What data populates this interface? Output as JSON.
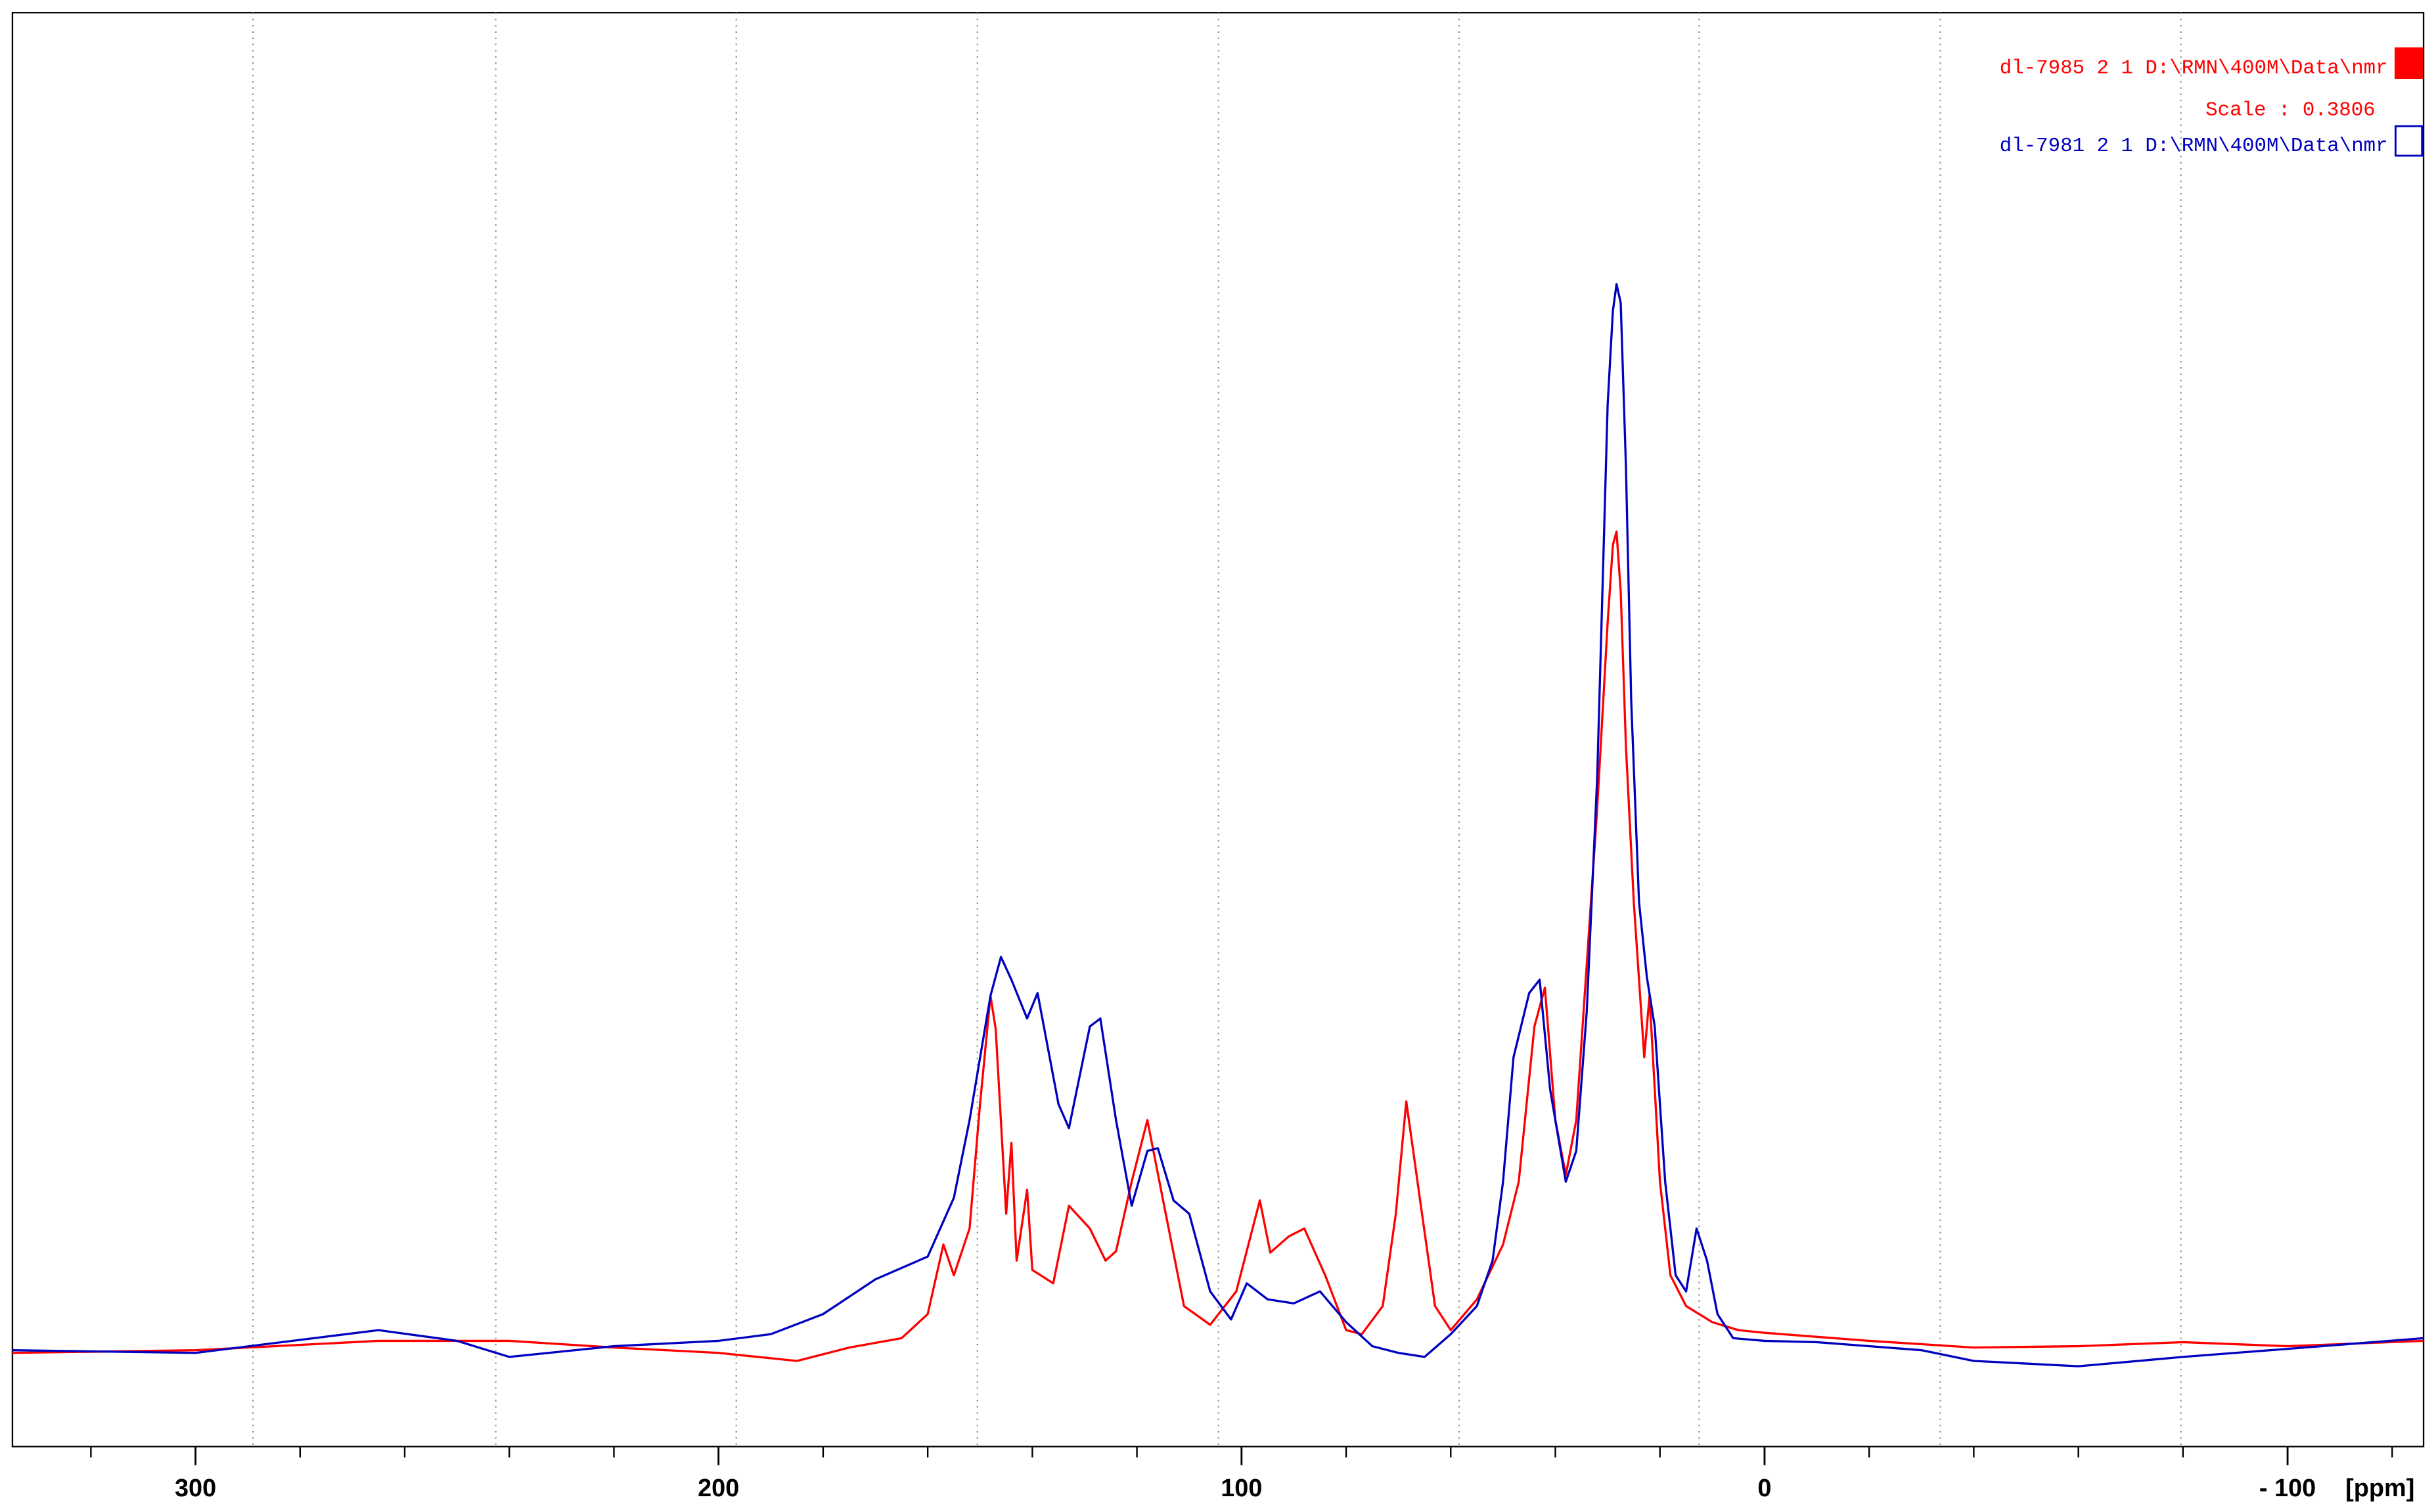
{
  "chart_data": {
    "type": "line",
    "x_reversed": true,
    "xlim": [
      335,
      -126
    ],
    "ylim": [
      -7.2,
      100
    ],
    "xticks": [
      300,
      200,
      100,
      0,
      {
        "value": -100,
        "label": "- 100"
      }
    ],
    "xminor_ticks": [
      320,
      280,
      260,
      240,
      220,
      180,
      160,
      140,
      120,
      80,
      60,
      40,
      20,
      -20,
      -40,
      -60,
      -80,
      -120
    ],
    "xgrid": [
      289,
      242.6,
      196.6,
      150.5,
      104.4,
      58.4,
      12.5,
      -33.6,
      -79.6
    ],
    "xlabel": "[ppm]",
    "scale_label": "Scale : 0.3806",
    "series": [
      {
        "name": "dl-7985  2  1  D:\\RMN\\400M\\Data\\nmr",
        "color": "#ff0000",
        "legend_fill": true,
        "x": [
          335,
          300,
          265,
          240,
          220,
          200,
          185,
          175,
          165,
          160,
          157,
          155,
          152,
          150,
          148,
          147,
          145,
          144,
          143,
          141,
          140,
          136,
          133,
          129,
          126,
          124,
          121,
          118,
          115,
          111,
          106,
          101,
          96.5,
          94.5,
          91,
          88,
          84,
          80,
          77,
          73,
          70.5,
          68.5,
          66,
          63,
          60,
          55,
          50,
          47,
          44,
          42,
          40,
          38,
          36,
          34,
          32,
          30,
          29,
          28.3,
          27.5,
          26.5,
          25,
          23,
          22,
          20,
          18,
          15,
          10,
          5,
          0,
          -20,
          -40,
          -60,
          -80,
          -100,
          -126
        ],
        "values": [
          -0.2,
          0,
          0.7,
          0.7,
          0.2,
          -0.2,
          -0.8,
          0.2,
          0.9,
          2.7,
          7.9,
          5.6,
          9.1,
          18.4,
          26.5,
          24,
          10.2,
          15.5,
          6.7,
          12,
          6,
          5,
          10.8,
          9.1,
          6.7,
          7.4,
          12.6,
          17.2,
          11.2,
          3.3,
          1.9,
          4.4,
          11.2,
          7.3,
          8.5,
          9.1,
          5.6,
          1.5,
          1.2,
          3.3,
          10.2,
          18.6,
          11.6,
          3.3,
          1.5,
          3.8,
          7.9,
          12.6,
          24.2,
          27.1,
          17.2,
          13.1,
          17.2,
          28.8,
          40.5,
          54.4,
          60.2,
          61.2,
          56.7,
          45.1,
          33.5,
          21.9,
          26.5,
          12.6,
          5.6,
          3.3,
          2.1,
          1.5,
          1.3,
          0.7,
          0.2,
          0.3,
          0.6,
          0.3,
          0.7
        ]
      },
      {
        "name": "dl-7981  2  1  D:\\RMN\\400M\\Data\\nmr",
        "color": "#0000c0",
        "legend_fill": false,
        "x": [
          335,
          300,
          265,
          250,
          240,
          220,
          200,
          190,
          180,
          170,
          160,
          155,
          152,
          148,
          146,
          144,
          141,
          139,
          135,
          133,
          129,
          127,
          124,
          121,
          118,
          116,
          113,
          110,
          106,
          102,
          99,
          95,
          90,
          85,
          80,
          75,
          70,
          65,
          60,
          55,
          52,
          50,
          48,
          45,
          43,
          41,
          38,
          36,
          34,
          32,
          31,
          30,
          29,
          28.3,
          27.5,
          26.5,
          25.5,
          24,
          22.5,
          21,
          19,
          17,
          15,
          13,
          11,
          9,
          6,
          0,
          -10,
          -30,
          -40,
          -60,
          -80,
          -100,
          -126
        ],
        "values": [
          0,
          -0.2,
          1.5,
          0.7,
          -0.5,
          0.3,
          0.7,
          1.2,
          2.7,
          5.3,
          7,
          11.4,
          17.2,
          26.5,
          29.4,
          27.7,
          24.8,
          26.7,
          18.4,
          16.6,
          24.2,
          24.8,
          17.2,
          10.8,
          14.9,
          15.1,
          11.2,
          10.2,
          4.4,
          2.3,
          5,
          3.8,
          3.5,
          4.4,
          2.1,
          0.3,
          -0.2,
          -0.5,
          1.2,
          3.3,
          6.7,
          12.6,
          21.9,
          26.7,
          27.7,
          19.5,
          12.6,
          14.9,
          25.3,
          42.8,
          56.7,
          70.7,
          77.7,
          79.7,
          78.3,
          66,
          48.6,
          33.5,
          27.9,
          24.2,
          12.6,
          5.6,
          4.4,
          9.1,
          6.7,
          2.7,
          0.9,
          0.7,
          0.6,
          0,
          -0.8,
          -1.2,
          -0.5,
          0.1,
          0.9
        ]
      }
    ]
  }
}
